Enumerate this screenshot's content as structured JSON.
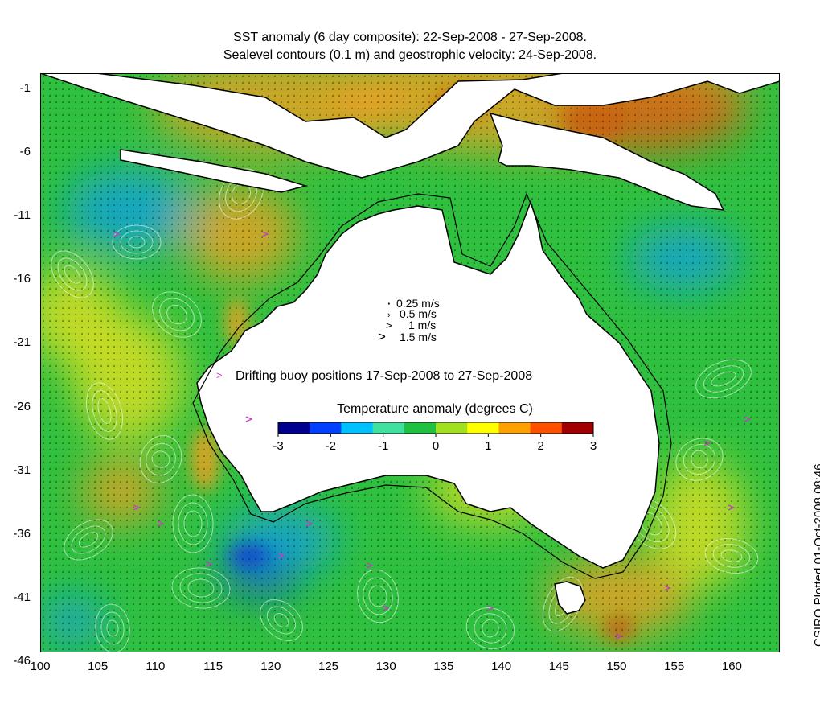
{
  "title_line1": "SST anomaly (6 day composite): 22-Sep-2008 - 27-Sep-2008.",
  "title_line2": "Sealevel contours (0.1 m) and geostrophic velocity: 24-Sep-2008.",
  "y_ticks": [
    "-1",
    "-6",
    "-11",
    "-16",
    "-21",
    "-26",
    "-31",
    "-36",
    "-41",
    "-46"
  ],
  "x_ticks": [
    "100",
    "105",
    "110",
    "115",
    "120",
    "125",
    "130",
    "135",
    "140",
    "145",
    "150",
    "155",
    "160"
  ],
  "velocity_key": [
    "0.25 m/s",
    "0.5 m/s",
    "1 m/s",
    "1.5 m/s"
  ],
  "buoy_legend": "Drifting buoy positions 17-Sep-2008 to 27-Sep-2008",
  "colorbar": {
    "title": "Temperature anomaly (degrees C)",
    "ticks": [
      "-3",
      "-2",
      "-1",
      "0",
      "1",
      "2",
      "3"
    ],
    "colors": [
      "#00008f",
      "#0040ff",
      "#00c0ff",
      "#40e0a0",
      "#20c040",
      "#a0e020",
      "#ffff00",
      "#ffa000",
      "#ff5000",
      "#a00000"
    ]
  },
  "credit": "CSIRO Plotted 01-Oct-2008 08:46",
  "colors": {
    "land": "#ffffff",
    "coast": "#000000",
    "buoy": "#c040c0",
    "sea_base": "#2fc040",
    "warm": "#f0a020",
    "hot": "#c86010",
    "cool": "#10a0e0",
    "cold": "#1040d0",
    "yellow": "#e0e020"
  }
}
